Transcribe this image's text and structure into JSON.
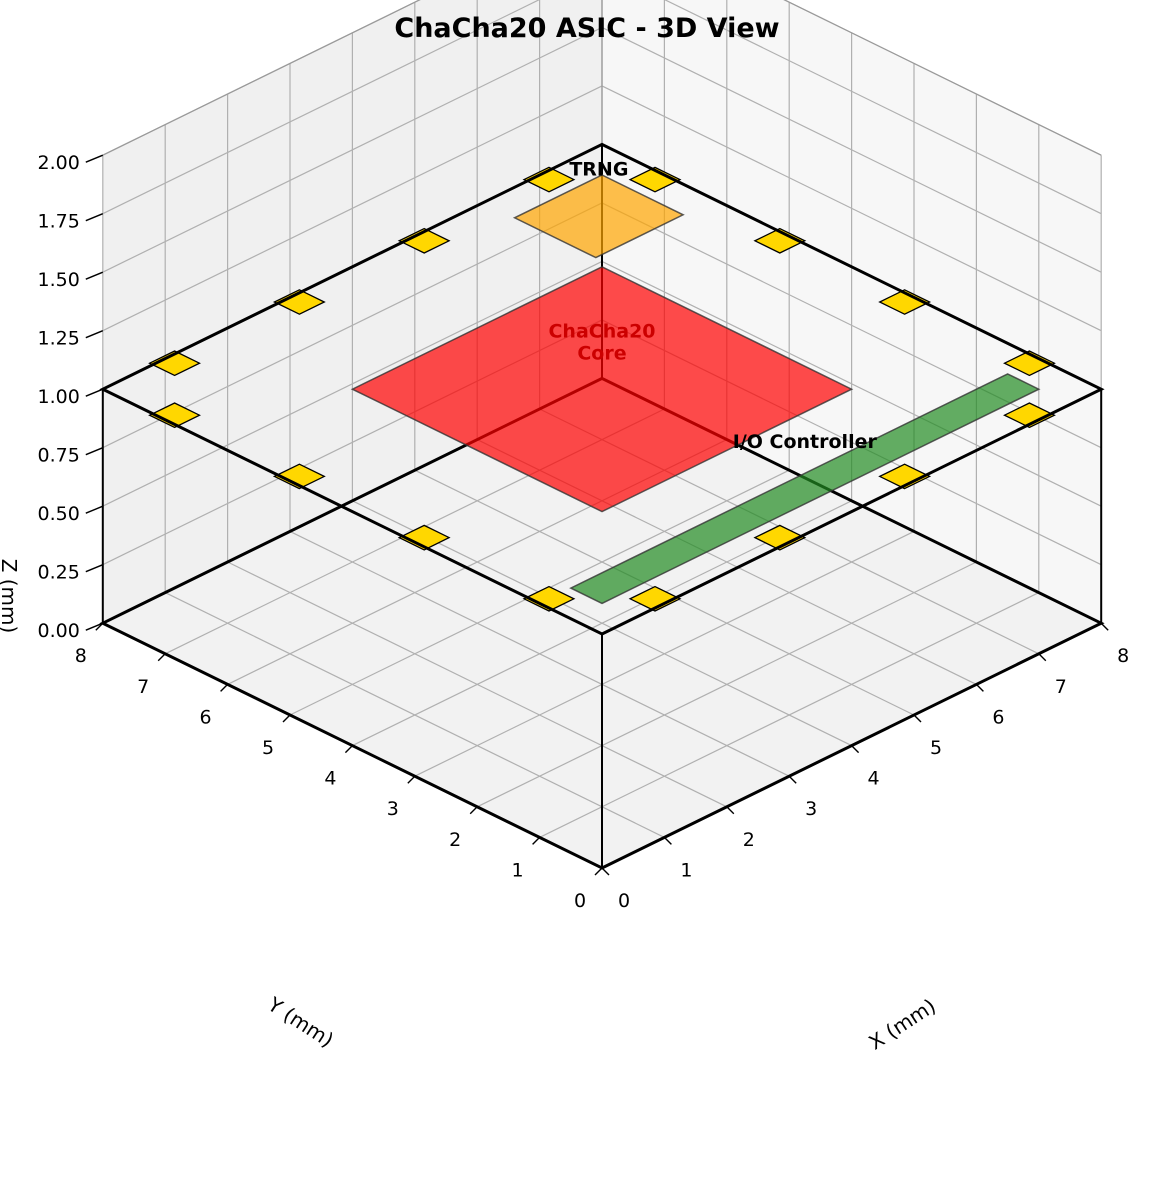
{
  "chart_data": {
    "type": "3d-layout",
    "title": "ChaCha20 ASIC - 3D View",
    "xlabel": "X (mm)",
    "ylabel": "Y (mm)",
    "zlabel": "Z (mm)",
    "xlim": [
      0,
      8
    ],
    "ylim": [
      0,
      8
    ],
    "zlim": [
      0,
      2
    ],
    "grid": true,
    "view": {
      "elevation_deg": 30,
      "azimuth_deg": 45
    },
    "x_ticks": [
      "0",
      "1",
      "2",
      "3",
      "4",
      "5",
      "6",
      "7",
      "8"
    ],
    "y_ticks": [
      "0",
      "1",
      "2",
      "3",
      "4",
      "5",
      "6",
      "7",
      "8"
    ],
    "z_ticks": [
      "0.00",
      "0.25",
      "0.50",
      "0.75",
      "1.00",
      "1.25",
      "1.50",
      "1.75",
      "2.00"
    ],
    "die_outline": {
      "color": "#000000",
      "bottom_z": 0,
      "top_z": 1,
      "x_range": [
        0,
        8
      ],
      "y_range": [
        0,
        8
      ]
    },
    "blocks": [
      {
        "name": "ChaCha20\nCore",
        "x": [
          2,
          6
        ],
        "y": [
          2,
          6
        ],
        "z": 1,
        "color": "#ff0000",
        "text_color": "#cc0000"
      },
      {
        "name": "I/O Controller",
        "x": [
          0.5,
          7.5
        ],
        "y": [
          0.5,
          1.0
        ],
        "z": 1,
        "color": "#228B22",
        "text_color": "#000000"
      },
      {
        "name": "TRNG",
        "x": [
          6.1,
          7.5
        ],
        "y": [
          6.2,
          7.5
        ],
        "z": 1,
        "color": "#FFA500",
        "text_color": "#000000"
      }
    ],
    "pads": {
      "color": "#FFD700",
      "edge_color": "#000000",
      "z": 1,
      "half_size": 0.2,
      "centers": [
        [
          1.0,
          0.15
        ],
        [
          3.0,
          0.15
        ],
        [
          5.0,
          0.15
        ],
        [
          7.0,
          0.15
        ],
        [
          7.85,
          1.0
        ],
        [
          7.85,
          3.0
        ],
        [
          7.85,
          5.0
        ],
        [
          7.85,
          7.0
        ],
        [
          1.0,
          7.85
        ],
        [
          3.0,
          7.85
        ],
        [
          5.0,
          7.85
        ],
        [
          7.0,
          7.85
        ],
        [
          0.15,
          1.0
        ],
        [
          0.15,
          3.0
        ],
        [
          0.15,
          5.0
        ],
        [
          0.15,
          7.0
        ]
      ]
    }
  }
}
